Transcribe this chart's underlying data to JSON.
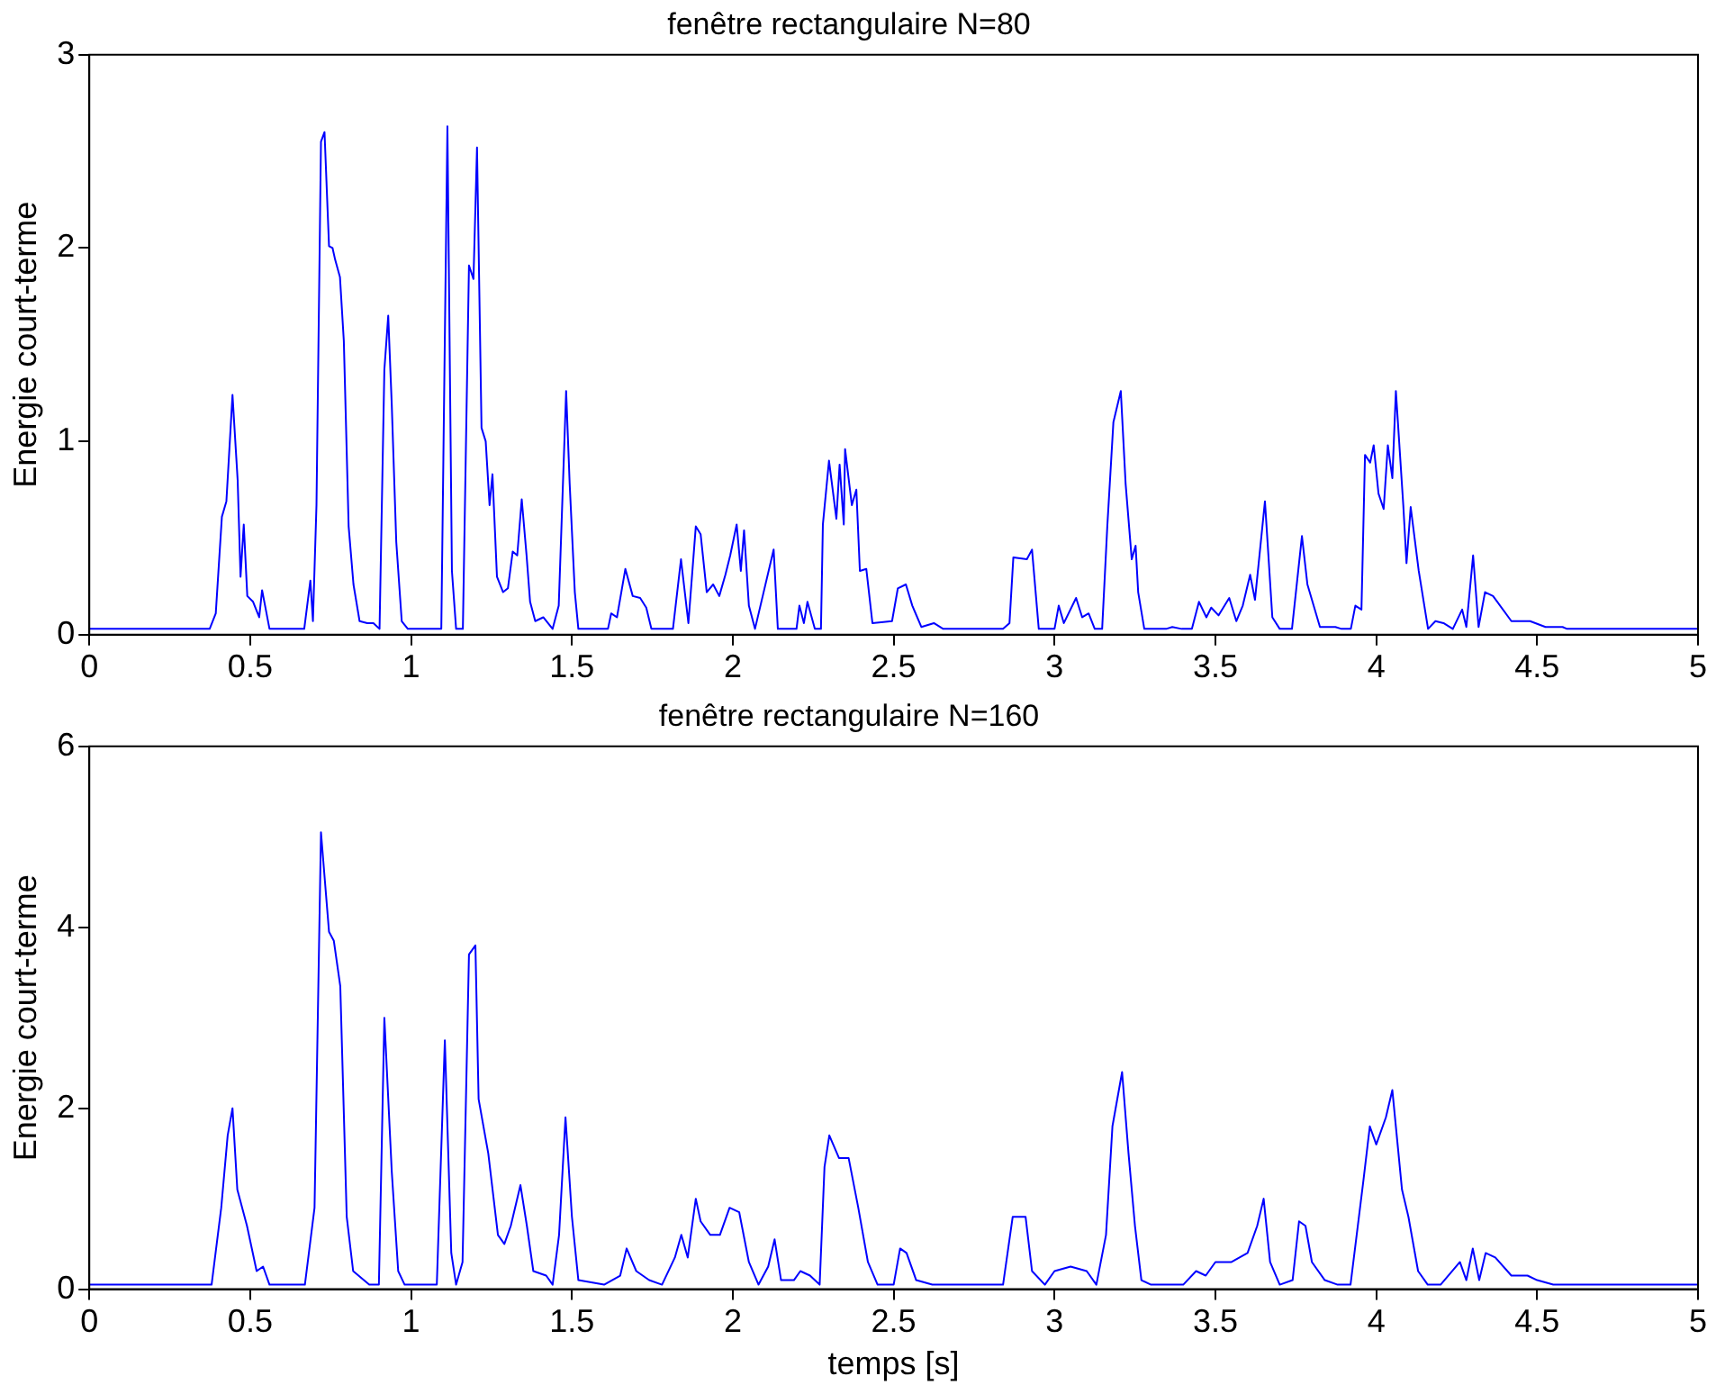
{
  "chart_data": [
    {
      "type": "line",
      "title": "fenêtre rectangulaire N=80",
      "ylabel": "Energie court-terme",
      "x": [
        0,
        0.374,
        0.393,
        0.412,
        0.426,
        0.445,
        0.461,
        0.47,
        0.48,
        0.491,
        0.509,
        0.528,
        0.537,
        0.56,
        0.668,
        0.687,
        0.695,
        0.706,
        0.72,
        0.731,
        0.745,
        0.756,
        0.764,
        0.779,
        0.791,
        0.806,
        0.821,
        0.84,
        0.864,
        0.883,
        0.902,
        0.917,
        0.929,
        0.94,
        0.954,
        0.971,
        0.99,
        1.094,
        1.113,
        1.127,
        1.14,
        1.161,
        1.18,
        1.194,
        1.205,
        1.219,
        1.232,
        1.244,
        1.253,
        1.267,
        1.286,
        1.301,
        1.316,
        1.33,
        1.344,
        1.359,
        1.37,
        1.386,
        1.411,
        1.44,
        1.459,
        1.482,
        1.493,
        1.509,
        1.52,
        1.612,
        1.622,
        1.64,
        1.666,
        1.689,
        1.712,
        1.731,
        1.747,
        1.814,
        1.839,
        1.862,
        1.885,
        1.9,
        1.919,
        1.939,
        1.958,
        1.977,
        1.992,
        2.012,
        2.025,
        2.035,
        2.05,
        2.069,
        2.127,
        2.14,
        2.198,
        2.207,
        2.221,
        2.232,
        2.255,
        2.274,
        2.28,
        2.299,
        2.322,
        2.332,
        2.345,
        2.349,
        2.37,
        2.384,
        2.395,
        2.415,
        2.434,
        2.495,
        2.513,
        2.538,
        2.558,
        2.586,
        2.625,
        2.654,
        2.84,
        2.86,
        2.872,
        2.914,
        2.93,
        2.951,
        3.0,
        3.013,
        3.029,
        3.067,
        3.086,
        3.106,
        3.125,
        3.148,
        3.164,
        3.183,
        3.206,
        3.221,
        3.24,
        3.252,
        3.26,
        3.279,
        3.347,
        3.366,
        3.395,
        3.427,
        3.449,
        3.472,
        3.487,
        3.51,
        3.543,
        3.565,
        3.585,
        3.608,
        3.623,
        3.654,
        3.677,
        3.7,
        3.738,
        3.769,
        3.786,
        3.825,
        3.873,
        3.892,
        3.921,
        3.935,
        3.954,
        3.965,
        3.981,
        3.992,
        4.007,
        4.023,
        4.036,
        4.05,
        4.061,
        4.084,
        4.094,
        4.107,
        4.132,
        4.161,
        4.184,
        4.209,
        4.238,
        4.267,
        4.28,
        4.301,
        4.318,
        4.338,
        4.363,
        4.42,
        4.478,
        4.526,
        4.579,
        4.593,
        5.0
      ],
      "series": [
        {
          "color": "#0000ff",
          "values": [
            0.03,
            0.03,
            0.11,
            0.61,
            0.69,
            1.24,
            0.8,
            0.3,
            0.57,
            0.2,
            0.17,
            0.09,
            0.23,
            0.03,
            0.03,
            0.28,
            0.07,
            0.67,
            2.55,
            2.6,
            2.01,
            2.0,
            1.94,
            1.85,
            1.52,
            0.56,
            0.26,
            0.07,
            0.06,
            0.06,
            0.03,
            1.37,
            1.65,
            1.19,
            0.48,
            0.07,
            0.03,
            0.03,
            2.63,
            0.33,
            0.03,
            0.03,
            1.91,
            1.84,
            2.52,
            1.07,
            1.0,
            0.67,
            0.83,
            0.3,
            0.22,
            0.24,
            0.43,
            0.41,
            0.7,
            0.41,
            0.17,
            0.07,
            0.09,
            0.03,
            0.15,
            1.26,
            0.78,
            0.22,
            0.03,
            0.03,
            0.11,
            0.09,
            0.34,
            0.2,
            0.19,
            0.14,
            0.03,
            0.03,
            0.39,
            0.06,
            0.56,
            0.52,
            0.22,
            0.26,
            0.2,
            0.31,
            0.41,
            0.57,
            0.33,
            0.54,
            0.15,
            0.03,
            0.44,
            0.03,
            0.03,
            0.15,
            0.06,
            0.17,
            0.03,
            0.03,
            0.57,
            0.9,
            0.6,
            0.88,
            0.57,
            0.96,
            0.67,
            0.75,
            0.33,
            0.34,
            0.06,
            0.07,
            0.24,
            0.26,
            0.15,
            0.04,
            0.06,
            0.03,
            0.03,
            0.06,
            0.4,
            0.39,
            0.44,
            0.03,
            0.03,
            0.15,
            0.06,
            0.19,
            0.09,
            0.11,
            0.03,
            0.03,
            0.56,
            1.1,
            1.26,
            0.78,
            0.39,
            0.46,
            0.22,
            0.03,
            0.03,
            0.04,
            0.03,
            0.03,
            0.17,
            0.09,
            0.14,
            0.1,
            0.19,
            0.07,
            0.15,
            0.31,
            0.18,
            0.69,
            0.09,
            0.03,
            0.03,
            0.51,
            0.26,
            0.04,
            0.04,
            0.03,
            0.03,
            0.15,
            0.13,
            0.93,
            0.89,
            0.98,
            0.73,
            0.65,
            0.98,
            0.81,
            1.26,
            0.67,
            0.37,
            0.66,
            0.33,
            0.03,
            0.07,
            0.06,
            0.03,
            0.13,
            0.04,
            0.41,
            0.04,
            0.22,
            0.2,
            0.07,
            0.07,
            0.04,
            0.04,
            0.03,
            0.03
          ]
        }
      ],
      "xlim": [
        0,
        5
      ],
      "xticks": [
        0,
        0.5,
        1,
        1.5,
        2,
        2.5,
        3,
        3.5,
        4,
        4.5,
        5
      ],
      "ylim": [
        0,
        3
      ],
      "yticks": [
        0,
        1,
        2,
        3
      ],
      "grid": false,
      "legend": false,
      "marker": "none",
      "line_style": "solid"
    },
    {
      "type": "line",
      "title": "fenêtre rectangulaire N=160",
      "xlabel": "temps [s]",
      "ylabel": "Energie court-terme",
      "x": [
        0,
        0.38,
        0.41,
        0.43,
        0.445,
        0.46,
        0.49,
        0.52,
        0.54,
        0.56,
        0.67,
        0.7,
        0.72,
        0.745,
        0.76,
        0.78,
        0.8,
        0.82,
        0.87,
        0.9,
        0.917,
        0.94,
        0.96,
        0.98,
        1.08,
        1.105,
        1.125,
        1.14,
        1.16,
        1.18,
        1.2,
        1.21,
        1.24,
        1.27,
        1.29,
        1.31,
        1.34,
        1.36,
        1.38,
        1.42,
        1.44,
        1.46,
        1.48,
        1.5,
        1.52,
        1.6,
        1.65,
        1.67,
        1.7,
        1.74,
        1.78,
        1.82,
        1.84,
        1.86,
        1.885,
        1.9,
        1.93,
        1.96,
        1.99,
        2.02,
        2.05,
        2.08,
        2.11,
        2.13,
        2.15,
        2.19,
        2.21,
        2.24,
        2.27,
        2.285,
        2.3,
        2.33,
        2.36,
        2.39,
        2.42,
        2.45,
        2.5,
        2.52,
        2.54,
        2.57,
        2.62,
        2.84,
        2.87,
        2.91,
        2.93,
        2.97,
        3.0,
        3.05,
        3.1,
        3.13,
        3.16,
        3.18,
        3.21,
        3.23,
        3.25,
        3.27,
        3.3,
        3.4,
        3.44,
        3.47,
        3.5,
        3.55,
        3.6,
        3.63,
        3.65,
        3.67,
        3.7,
        3.74,
        3.76,
        3.78,
        3.8,
        3.84,
        3.88,
        3.92,
        3.96,
        3.98,
        4.0,
        4.03,
        4.05,
        4.08,
        4.1,
        4.13,
        4.16,
        4.2,
        4.26,
        4.28,
        4.3,
        4.32,
        4.34,
        4.37,
        4.42,
        4.47,
        4.5,
        4.55,
        5.0
      ],
      "series": [
        {
          "color": "#0000ff",
          "values": [
            0.05,
            0.05,
            0.9,
            1.7,
            2.0,
            1.1,
            0.7,
            0.2,
            0.25,
            0.05,
            0.05,
            0.9,
            5.05,
            3.95,
            3.85,
            3.35,
            0.8,
            0.2,
            0.05,
            0.05,
            3.0,
            1.3,
            0.2,
            0.05,
            0.05,
            2.75,
            0.4,
            0.05,
            0.3,
            3.7,
            3.8,
            2.1,
            1.5,
            0.6,
            0.5,
            0.7,
            1.15,
            0.7,
            0.2,
            0.15,
            0.05,
            0.6,
            1.9,
            0.8,
            0.1,
            0.05,
            0.15,
            0.45,
            0.2,
            0.1,
            0.05,
            0.35,
            0.6,
            0.35,
            1.0,
            0.75,
            0.6,
            0.6,
            0.9,
            0.85,
            0.3,
            0.05,
            0.25,
            0.55,
            0.1,
            0.1,
            0.2,
            0.15,
            0.05,
            1.35,
            1.7,
            1.45,
            1.45,
            0.9,
            0.3,
            0.05,
            0.05,
            0.45,
            0.4,
            0.1,
            0.05,
            0.05,
            0.8,
            0.8,
            0.2,
            0.05,
            0.2,
            0.25,
            0.2,
            0.05,
            0.6,
            1.8,
            2.4,
            1.5,
            0.7,
            0.1,
            0.05,
            0.05,
            0.2,
            0.15,
            0.3,
            0.3,
            0.4,
            0.7,
            1.0,
            0.3,
            0.05,
            0.1,
            0.75,
            0.7,
            0.3,
            0.1,
            0.05,
            0.05,
            1.2,
            1.8,
            1.6,
            1.9,
            2.2,
            1.1,
            0.8,
            0.2,
            0.05,
            0.05,
            0.3,
            0.1,
            0.45,
            0.1,
            0.4,
            0.35,
            0.15,
            0.15,
            0.1,
            0.05,
            0.05
          ]
        }
      ],
      "xlim": [
        0,
        5
      ],
      "xticks": [
        0,
        0.5,
        1,
        1.5,
        2,
        2.5,
        3,
        3.5,
        4,
        4.5,
        5
      ],
      "ylim": [
        0,
        6
      ],
      "yticks": [
        0,
        2,
        4,
        6
      ],
      "grid": false,
      "legend": false,
      "marker": "none",
      "line_style": "solid"
    }
  ]
}
